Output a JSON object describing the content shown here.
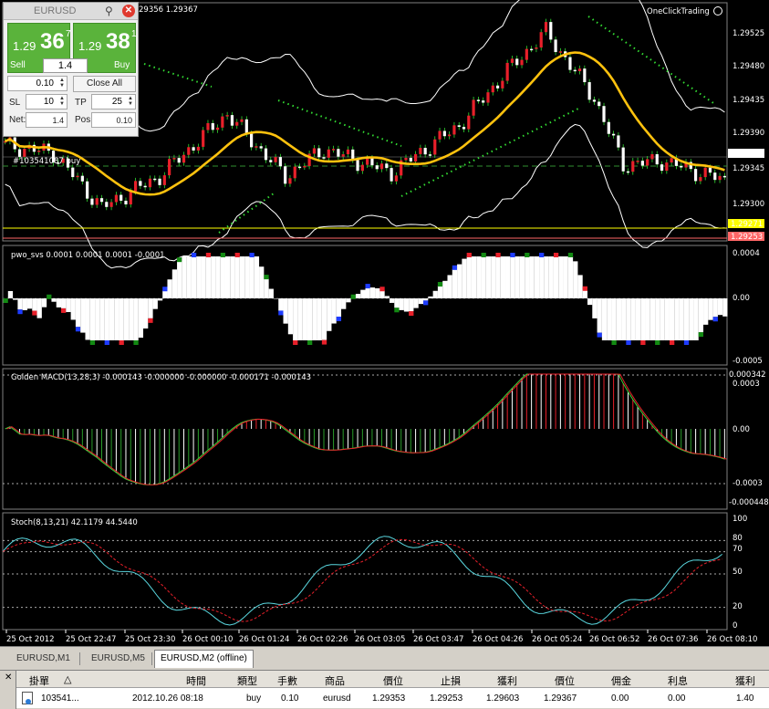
{
  "chart": {
    "price_header": "29356 1.29367",
    "brand": "OneClickTrading",
    "position_label": "#103541087 buy",
    "price_axis": [
      "1.29525",
      "1.29480",
      "1.29435",
      "1.29390",
      "1.29367",
      "1.29345",
      "1.29300",
      "1.29271",
      "1.29253"
    ],
    "pwo": {
      "title": "pwo_svs 0.0001 0.0001 0.0001 -0.0001",
      "axis": [
        "0.0004",
        "0.00",
        "-0.0005"
      ]
    },
    "macd": {
      "title": "Golden MACD(13,28,3) -0.000143 -0.000000 -0.000000 -0.000171 -0.000143",
      "axis": [
        "0.000342",
        "0.0003",
        "0.00",
        "-0.0003",
        "-0.000448"
      ]
    },
    "stoch": {
      "title": "Stoch(8,13,21) 42.1179 44.5440",
      "axis": [
        "100",
        "80",
        "70",
        "50",
        "20",
        "0"
      ]
    },
    "time_axis": [
      "25 Oct 2012",
      "25 Oct 22:47",
      "25 Oct 23:30",
      "26 Oct 00:10",
      "26 Oct 01:24",
      "26 Oct 02:26",
      "26 Oct 03:05",
      "26 Oct 03:47",
      "26 Oct 04:26",
      "26 Oct 05:24",
      "26 Oct 06:52",
      "26 Oct 07:36",
      "26 Oct 08:10"
    ],
    "colors": {
      "bull": "#e8202a",
      "bear": "#ffffff",
      "ma": "#ffc20e",
      "bands": "#ffffff",
      "sar": "#33dd33",
      "pos_line": "#2f8f2f",
      "ask_line": "#ffff00",
      "bid_line": "#ff6666"
    }
  },
  "oct": {
    "symbol": "EURUSD",
    "sell": {
      "prefix": "1.29",
      "big": "36",
      "sup": "7",
      "label": "Sell"
    },
    "buy": {
      "prefix": "1.29",
      "big": "38",
      "sup": "1",
      "label": "Buy"
    },
    "volume": "1.4",
    "lot": "0.10",
    "close_all": "Close All",
    "sl_label": "SL",
    "sl": "10",
    "tp_label": "TP",
    "tp": "25",
    "net_label": "Net:",
    "net": "1.4",
    "pos_label": "Pos:",
    "pos": "0.10"
  },
  "tabs": [
    "EURUSD,M1",
    "EURUSD,M5",
    "EURUSD,M2 (offline)"
  ],
  "table": {
    "headers": [
      "掛單",
      "時間",
      "類型",
      "手數",
      "商品",
      "價位",
      "止損",
      "獲利",
      "價位",
      "佣金",
      "利息",
      "獲利"
    ],
    "row": [
      "103541...",
      "2012.10.26 08:18",
      "buy",
      "0.10",
      "eurusd",
      "1.29353",
      "1.29253",
      "1.29603",
      "1.29367",
      "0.00",
      "0.00",
      "1.40"
    ]
  }
}
